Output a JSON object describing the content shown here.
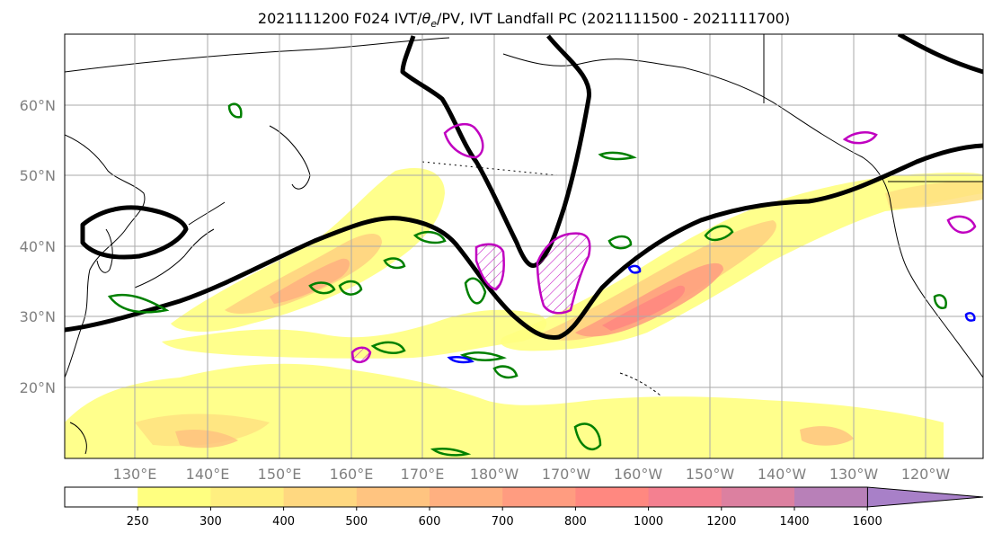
{
  "title": "2021111200 F024 IVT/θe/PV, IVT Landfall PC (2021111500 - 2021111700)",
  "title_parts": {
    "prefix": "2021111200 F024 IVT/",
    "theta": "θ",
    "sub": "e",
    "suffix": "/PV, IVT Landfall PC (2021111500 - 2021111700)"
  },
  "lat_labels": [
    "60°N",
    "50°N",
    "40°N",
    "30°N",
    "20°N"
  ],
  "lon_labels": [
    "130°E",
    "140°E",
    "150°E",
    "160°E",
    "170°E",
    "180°W",
    "170°W",
    "160°W",
    "150°W",
    "140°W",
    "130°W",
    "120°W"
  ],
  "map": {
    "projection": "cylindrical",
    "lon_range_deg_east": [
      120,
      248
    ],
    "lat_range": [
      10,
      70
    ],
    "gridlines": true,
    "gridline_lon_step": 10,
    "gridline_lat_step": 10
  },
  "colorbar": {
    "levels": [
      "250",
      "300",
      "400",
      "500",
      "600",
      "700",
      "800",
      "1000",
      "1200",
      "1400",
      "1600"
    ],
    "colors": [
      "#ffffff",
      "#ffff80",
      "#ffef80",
      "#ffd880",
      "#ffc480",
      "#ffb080",
      "#ff9c80",
      "#ff8880",
      "#f48090",
      "#dc80a0",
      "#b880b8",
      "#a880c8"
    ],
    "extend": "max"
  },
  "colors": {
    "ivt_fill_low": "#ffff80",
    "ivt_fill_high": "#ff8880",
    "theta_e_contour": "#000000",
    "pv_positive_contour": "#008000",
    "pv_negative_contour": "#0000ff",
    "landfall_pc_contour": "#c000c0",
    "coastline": "#000000",
    "gridline": "#aaaaaa"
  }
}
